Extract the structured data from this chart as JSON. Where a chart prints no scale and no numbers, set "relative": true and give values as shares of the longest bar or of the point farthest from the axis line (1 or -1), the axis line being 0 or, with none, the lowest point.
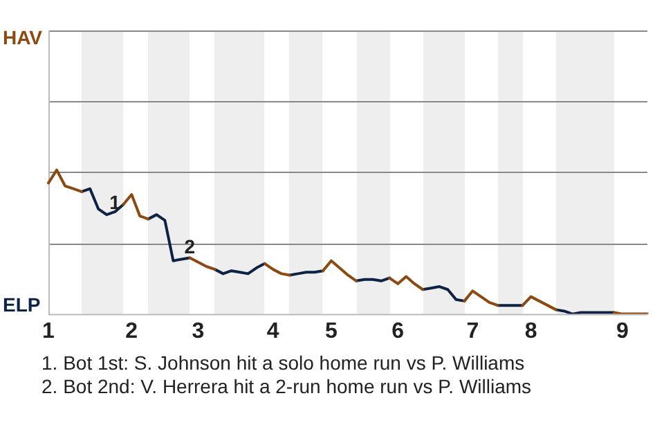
{
  "chart_data": {
    "type": "line",
    "relative": true,
    "categories": [
      "1",
      null,
      null,
      null,
      null,
      null,
      null,
      null,
      null,
      null,
      "2",
      null,
      null,
      null,
      null,
      null,
      null,
      null,
      "3",
      null,
      null,
      null,
      null,
      null,
      null,
      null,
      null,
      "4",
      null,
      null,
      null,
      null,
      null,
      null,
      "5",
      null,
      null,
      null,
      null,
      null,
      null,
      null,
      "6",
      null,
      null,
      null,
      null,
      null,
      null,
      null,
      null,
      "7",
      null,
      null,
      null,
      null,
      null,
      null,
      "8",
      null,
      null,
      null,
      null,
      null,
      null,
      null,
      null,
      null,
      null,
      "9",
      null,
      null,
      null
    ],
    "series": [
      {
        "color": "#8b4a12",
        "values": [
          0.91,
          1,
          0.89,
          0.87,
          0.85,
          null,
          null,
          null,
          null,
          0.76,
          0.83,
          0.68,
          0.66,
          null,
          null,
          null,
          null,
          0.39,
          0.36,
          0.33,
          0.31,
          null,
          null,
          null,
          null,
          null,
          0.35,
          0.31,
          0.28,
          0.27,
          null,
          null,
          null,
          0.3,
          0.37,
          0.32,
          0.27,
          0.23,
          null,
          null,
          null,
          0.25,
          0.21,
          0.26,
          0.21,
          0.17,
          null,
          null,
          null,
          null,
          0.09,
          0.16,
          0.12,
          0.08,
          0.06,
          null,
          null,
          0.06,
          0.12,
          0.09,
          0.06,
          0.03,
          null,
          null,
          null,
          null,
          null,
          null,
          0.01,
          0,
          0,
          0,
          0
        ]
      },
      {
        "color": "#0e2244",
        "values": [
          null,
          null,
          null,
          null,
          0.85,
          0.87,
          0.73,
          0.69,
          0.71,
          0.76,
          null,
          null,
          0.66,
          0.69,
          0.65,
          0.37,
          0.38,
          0.39,
          null,
          null,
          0.31,
          0.28,
          0.3,
          0.29,
          0.28,
          0.32,
          0.35,
          null,
          null,
          0.27,
          0.28,
          0.29,
          0.29,
          0.3,
          null,
          null,
          null,
          0.23,
          0.24,
          0.24,
          0.23,
          0.25,
          null,
          null,
          null,
          0.17,
          0.18,
          0.19,
          0.17,
          0.1,
          0.09,
          null,
          null,
          null,
          0.06,
          0.06,
          0.06,
          0.06,
          null,
          null,
          null,
          0.03,
          0.02,
          0,
          0.01,
          0.01,
          0.01,
          0.01,
          0.01,
          null,
          null,
          null,
          null
        ]
      }
    ],
    "ref_lines": [
      {
        "axis": "y",
        "value": 0.49,
        "color": "#888888"
      },
      {
        "axis": "y",
        "value": 0.99,
        "color": "#888888"
      },
      {
        "axis": "y",
        "value": 1.48,
        "color": "#888888"
      },
      {
        "axis": "y",
        "value": 1.97,
        "color": "#888888"
      }
    ],
    "legend": false,
    "marker": "none",
    "line_style": "solid",
    "annotations": [
      "HAV",
      "ELP",
      {
        "text": "1",
        "y": 0.69
      },
      {
        "text": "2",
        "y": 0.38
      },
      "1. Bot 1st: S. Johnson hit a solo home run vs P. Williams",
      "2. Bot 2nd: V. Herrera hit a 2-run home run vs P. Williams"
    ]
  }
}
